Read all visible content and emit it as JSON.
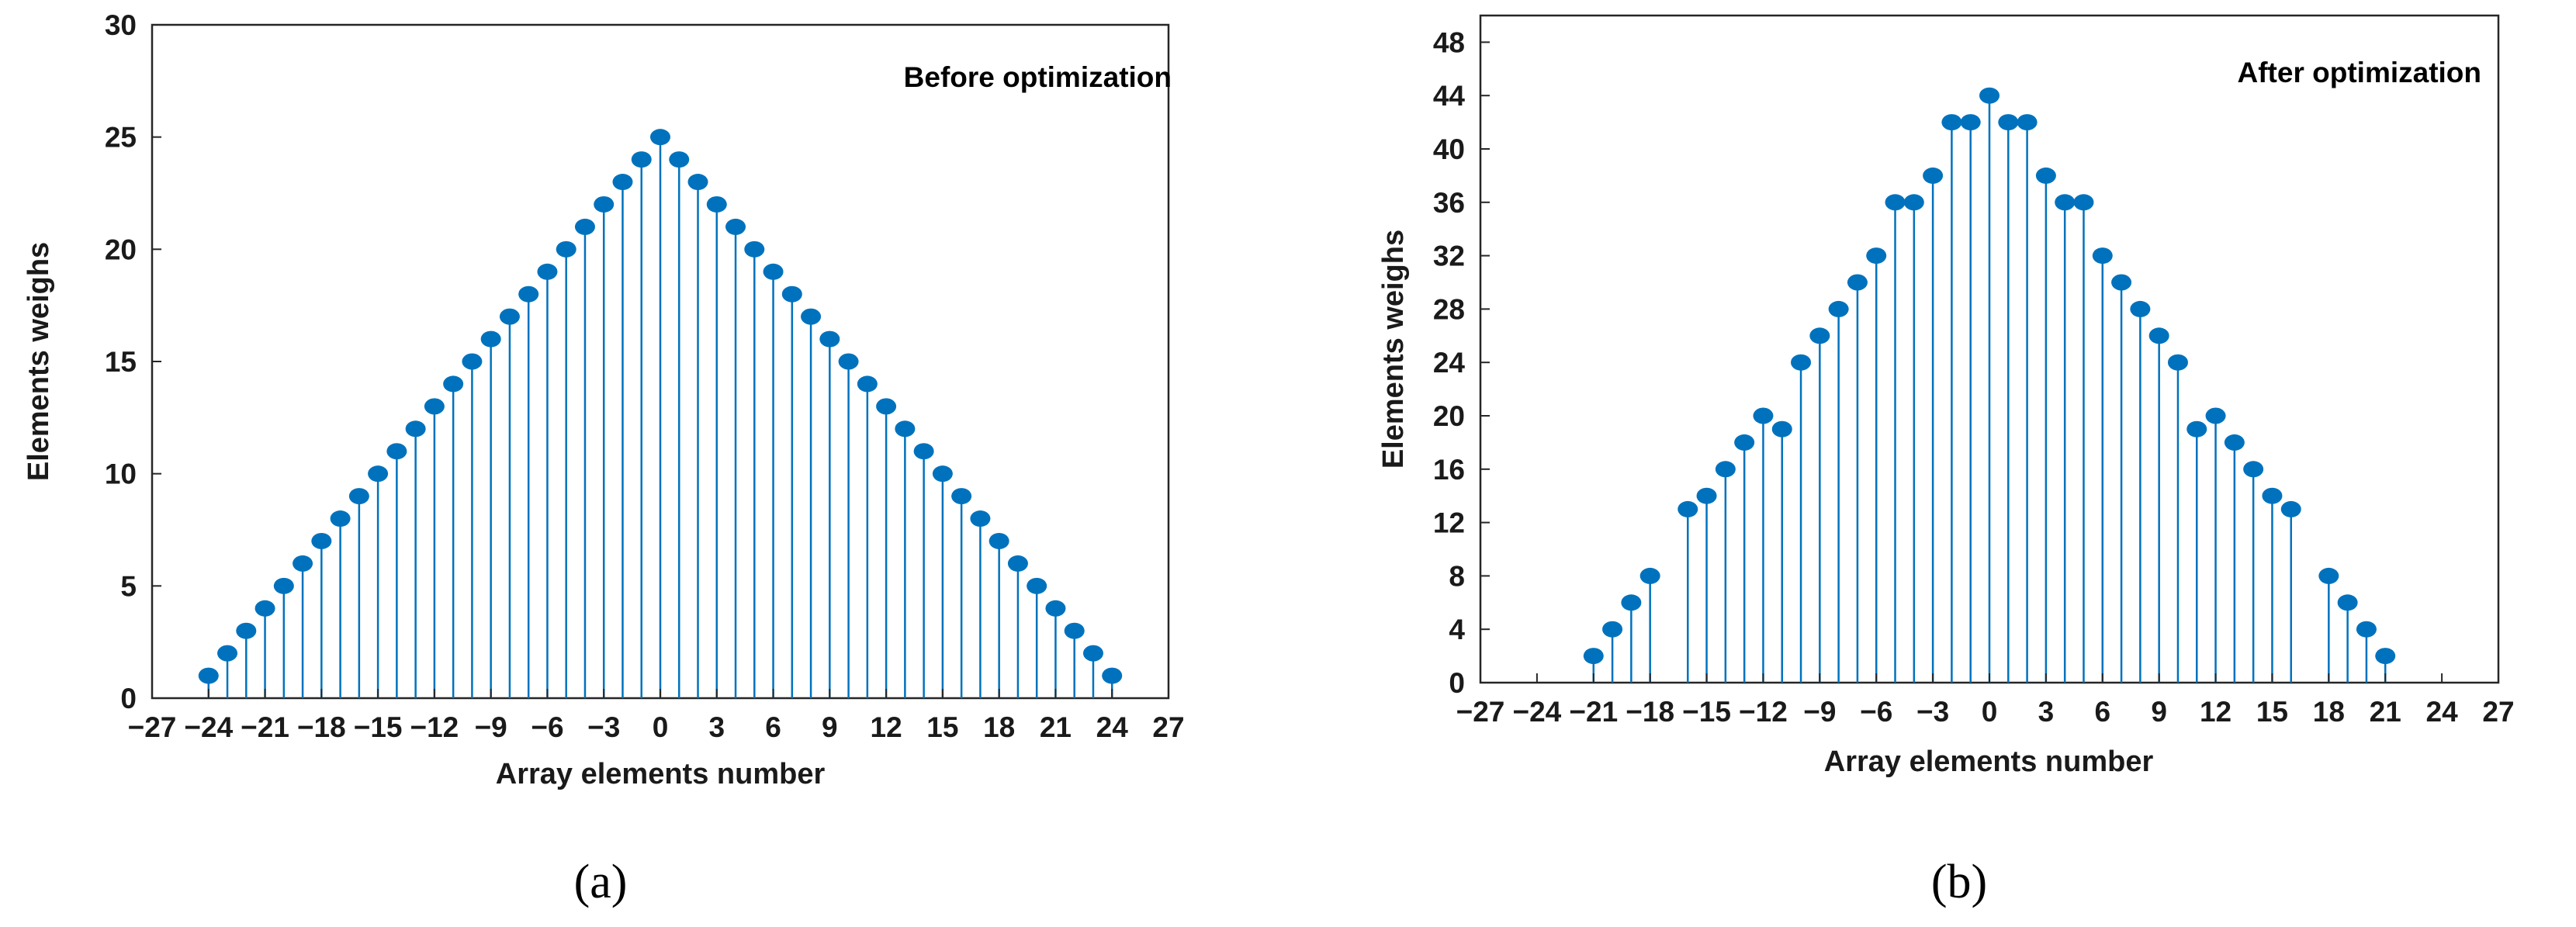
{
  "colors": {
    "stem": "#0072bd",
    "marker": "#0072bd",
    "axis": "#262626",
    "background": "#ffffff"
  },
  "chart_data": [
    {
      "type": "scatter",
      "style": "stem",
      "title": "",
      "annotation": "Before optimization",
      "caption": "(a)",
      "xlabel": "Array elements number",
      "ylabel": "Elements weighs",
      "xlim": [
        -27,
        27
      ],
      "ylim": [
        0,
        30
      ],
      "xticks": [
        -27,
        -24,
        -21,
        -18,
        -15,
        -12,
        -9,
        -6,
        -3,
        0,
        3,
        6,
        9,
        12,
        15,
        18,
        21,
        24,
        27
      ],
      "yticks": [
        0,
        5,
        10,
        15,
        20,
        25,
        30
      ],
      "grid": false,
      "series": [
        {
          "x": [
            -24,
            -23,
            -22,
            -21,
            -20,
            -19,
            -18,
            -17,
            -16,
            -15,
            -14,
            -13,
            -12,
            -11,
            -10,
            -9,
            -8,
            -7,
            -6,
            -5,
            -4,
            -3,
            -2,
            -1,
            0,
            1,
            2,
            3,
            4,
            5,
            6,
            7,
            8,
            9,
            10,
            11,
            12,
            13,
            14,
            15,
            16,
            17,
            18,
            19,
            20,
            21,
            22,
            23,
            24
          ],
          "y": [
            1,
            2,
            3,
            4,
            5,
            6,
            7,
            8,
            9,
            10,
            11,
            12,
            13,
            14,
            15,
            16,
            17,
            18,
            19,
            20,
            21,
            22,
            23,
            24,
            25,
            24,
            23,
            22,
            21,
            20,
            19,
            18,
            17,
            16,
            15,
            14,
            13,
            12,
            11,
            10,
            9,
            8,
            7,
            6,
            5,
            4,
            3,
            2,
            1
          ]
        }
      ]
    },
    {
      "type": "scatter",
      "style": "stem",
      "title": "",
      "annotation": "After optimization",
      "caption": "(b)",
      "xlabel": "Array elements number",
      "ylabel": "Elements weighs",
      "xlim": [
        -27,
        27
      ],
      "ylim": [
        0,
        50
      ],
      "xticks": [
        -27,
        -24,
        -21,
        -18,
        -15,
        -12,
        -9,
        -6,
        -3,
        0,
        3,
        6,
        9,
        12,
        15,
        18,
        21,
        24,
        27
      ],
      "yticks": [
        0,
        4,
        8,
        12,
        16,
        20,
        24,
        28,
        32,
        36,
        40,
        44,
        48
      ],
      "grid": false,
      "series": [
        {
          "x": [
            -21,
            -20,
            -19,
            -18,
            -16,
            -15,
            -14,
            -13,
            -12,
            -11,
            -10,
            -9,
            -8,
            -7,
            -6,
            -5,
            -4,
            -3,
            -2,
            -1,
            0,
            1,
            2,
            3,
            4,
            5,
            6,
            7,
            8,
            9,
            10,
            11,
            12,
            13,
            14,
            15,
            16,
            18,
            19,
            20,
            21
          ],
          "y": [
            2,
            4,
            6,
            8,
            13,
            14,
            16,
            18,
            20,
            19,
            24,
            26,
            28,
            30,
            32,
            36,
            36,
            38,
            42,
            42,
            44,
            42,
            42,
            38,
            36,
            36,
            32,
            30,
            28,
            26,
            24,
            19,
            20,
            18,
            16,
            14,
            13,
            8,
            6,
            4,
            2
          ]
        }
      ]
    }
  ]
}
